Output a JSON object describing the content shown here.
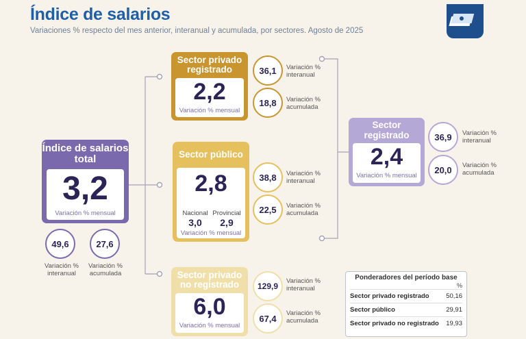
{
  "header": {
    "title": "Índice de salarios",
    "subtitle": "Variaciones % respecto del mes anterior, interanual y acumulada, por sectores. Agosto de 2025"
  },
  "colors": {
    "total": "#7b69ad",
    "privado_registrado": "#c9952e",
    "publico": "#e7c05e",
    "privado_no_registrado": "#f0dfa9",
    "registrado": "#b4a8d6"
  },
  "total": {
    "label": "Índice de salarios total",
    "mensual": "3,2",
    "mensual_caption": "Variación % mensual",
    "interanual": "49,6",
    "interanual_label": "Variación % interanual",
    "acumulada": "27,6",
    "acumulada_label": "Variación % acumulada"
  },
  "privado_registrado": {
    "label": "Sector privado registrado",
    "mensual": "2,2",
    "mensual_caption": "Variación % mensual",
    "interanual": "36,1",
    "interanual_label": "Variación % interanual",
    "acumulada": "18,8",
    "acumulada_label": "Variación % acumulada"
  },
  "publico": {
    "label": "Sector público",
    "mensual": "2,8",
    "mensual_caption": "Variación % mensual",
    "nacional_label": "Nacional",
    "nacional": "3,0",
    "provincial_label": "Provincial",
    "provincial": "2,9",
    "interanual": "38,8",
    "interanual_label": "Variación % interanual",
    "acumulada": "22,5",
    "acumulada_label": "Variación % acumulada"
  },
  "privado_no_registrado": {
    "label": "Sector privado no registrado",
    "mensual": "6,0",
    "mensual_caption": "Variación % mensual",
    "interanual": "129,9",
    "interanual_label": "Variación % interanual",
    "acumulada": "67,4",
    "acumulada_label": "Variación % acumulada"
  },
  "registrado": {
    "label": "Sector registrado",
    "mensual": "2,4",
    "mensual_caption": "Variación % mensual",
    "interanual": "36,9",
    "interanual_label": "Variación % interanual",
    "acumulada": "20,0",
    "acumulada_label": "Variación % acumulada"
  },
  "ponderadores": {
    "title": "Ponderadores del período base",
    "unit": "%",
    "rows": [
      {
        "label": "Sector privado registrado",
        "value": "50,16"
      },
      {
        "label": "Sector público",
        "value": "29,91"
      },
      {
        "label": "Sector privado no registrado",
        "value": "19,93"
      }
    ]
  }
}
